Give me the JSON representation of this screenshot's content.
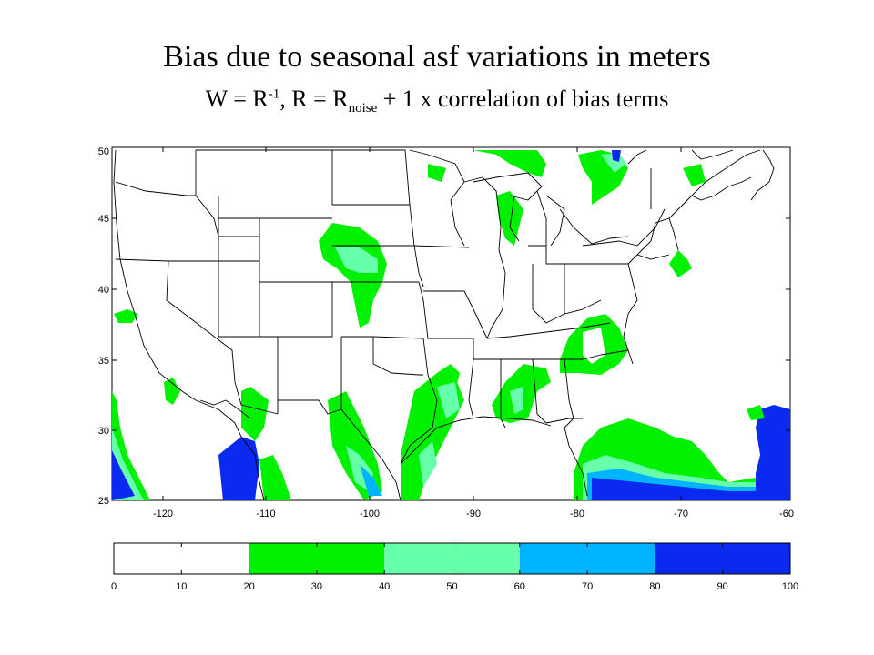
{
  "title": "Bias due to seasonal asf variations  in meters",
  "subtitle": {
    "p1": "W = R",
    "sup": "-1",
    "p2": ", R = R",
    "sub": "noise",
    "p3": " + 1 x correlation of bias terms"
  },
  "map": {
    "lon_ticks": [
      "-120",
      "-110",
      "-100",
      "-90",
      "-80",
      "-70",
      "-60"
    ],
    "lat_ticks": [
      "50",
      "45",
      "40",
      "35",
      "30",
      "25"
    ],
    "lon_range": [
      -125,
      -60
    ],
    "lat_range": [
      25,
      50
    ]
  },
  "colorbar": {
    "ticks": [
      "0",
      "10",
      "20",
      "30",
      "40",
      "50",
      "60",
      "70",
      "80",
      "90",
      "100"
    ],
    "bins": [
      {
        "from": 0,
        "to": 20,
        "color": "#ffffff"
      },
      {
        "from": 20,
        "to": 40,
        "color": "#00f000"
      },
      {
        "from": 40,
        "to": 60,
        "color": "#66ffaa"
      },
      {
        "from": 60,
        "to": 80,
        "color": "#00b4ff"
      },
      {
        "from": 80,
        "to": 100,
        "color": "#0a2aef"
      }
    ]
  }
}
